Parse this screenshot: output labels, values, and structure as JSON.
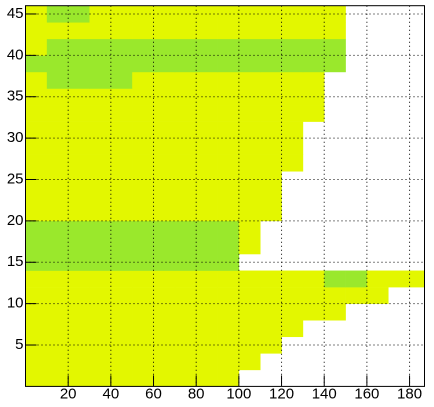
{
  "chart_data": {
    "type": "heatmap",
    "xbins": [
      0,
      10,
      20,
      30,
      40,
      50,
      60,
      70,
      80,
      90,
      100,
      110,
      120,
      130,
      140,
      150,
      160,
      170,
      180,
      187
    ],
    "ybins": [
      0,
      2,
      4,
      6,
      8,
      10,
      12,
      14,
      16,
      18,
      20,
      22,
      24,
      26,
      28,
      30,
      32,
      34,
      36,
      38,
      40,
      42,
      44,
      46
    ],
    "z": [
      [
        1,
        1,
        1,
        1,
        1,
        1,
        1,
        1,
        1,
        1,
        null,
        null,
        null,
        null,
        null,
        null,
        null,
        null,
        null
      ],
      [
        1,
        1,
        1,
        1,
        1,
        1,
        1,
        1,
        1,
        1,
        1,
        null,
        null,
        null,
        null,
        null,
        null,
        null,
        null
      ],
      [
        1,
        1,
        1,
        1,
        1,
        1,
        1,
        1,
        1,
        1,
        1,
        1,
        null,
        null,
        null,
        null,
        null,
        null,
        null
      ],
      [
        1,
        1,
        1,
        1,
        1,
        1,
        1,
        1,
        1,
        1,
        1,
        1,
        1,
        null,
        null,
        null,
        null,
        null,
        null
      ],
      [
        1,
        1,
        1,
        1,
        1,
        1,
        1,
        1,
        1,
        1,
        1,
        1,
        1,
        1,
        1,
        null,
        null,
        null,
        null
      ],
      [
        1,
        1,
        1,
        1,
        1,
        1,
        1,
        1,
        1,
        1,
        1,
        1,
        1,
        1,
        1,
        1,
        1,
        null,
        null
      ],
      [
        1,
        1,
        1,
        1,
        1,
        1,
        1,
        1,
        1,
        1,
        1,
        1,
        1,
        1,
        2,
        2,
        1,
        1,
        1
      ],
      [
        2,
        2,
        2,
        2,
        2,
        2,
        2,
        2,
        2,
        2,
        null,
        null,
        null,
        null,
        null,
        null,
        null,
        null,
        null
      ],
      [
        2,
        2,
        2,
        2,
        2,
        2,
        2,
        2,
        2,
        2,
        1,
        null,
        null,
        null,
        null,
        null,
        null,
        null,
        null
      ],
      [
        2,
        2,
        2,
        2,
        2,
        2,
        2,
        2,
        2,
        2,
        1,
        null,
        null,
        null,
        null,
        null,
        null,
        null,
        null
      ],
      [
        1,
        1,
        1,
        1,
        1,
        1,
        1,
        1,
        1,
        1,
        1,
        1,
        null,
        null,
        null,
        null,
        null,
        null,
        null
      ],
      [
        1,
        1,
        1,
        1,
        1,
        1,
        1,
        1,
        1,
        1,
        1,
        1,
        null,
        null,
        null,
        null,
        null,
        null,
        null
      ],
      [
        1,
        1,
        1,
        1,
        1,
        1,
        1,
        1,
        1,
        1,
        1,
        1,
        null,
        null,
        null,
        null,
        null,
        null,
        null
      ],
      [
        1,
        1,
        1,
        1,
        1,
        1,
        1,
        1,
        1,
        1,
        1,
        1,
        1,
        null,
        null,
        null,
        null,
        null,
        null
      ],
      [
        1,
        1,
        1,
        1,
        1,
        1,
        1,
        1,
        1,
        1,
        1,
        1,
        1,
        null,
        null,
        null,
        null,
        null,
        null
      ],
      [
        1,
        1,
        1,
        1,
        1,
        1,
        1,
        1,
        1,
        1,
        1,
        1,
        1,
        null,
        null,
        null,
        null,
        null,
        null
      ],
      [
        1,
        1,
        1,
        1,
        1,
        1,
        1,
        1,
        1,
        1,
        1,
        1,
        1,
        1,
        null,
        null,
        null,
        null,
        null
      ],
      [
        1,
        1,
        1,
        1,
        1,
        1,
        1,
        1,
        1,
        1,
        1,
        1,
        1,
        1,
        null,
        null,
        null,
        null,
        null
      ],
      [
        1,
        2,
        2,
        2,
        2,
        1,
        1,
        1,
        1,
        1,
        1,
        1,
        1,
        1,
        null,
        null,
        null,
        null,
        null
      ],
      [
        2,
        2,
        2,
        2,
        2,
        2,
        2,
        2,
        2,
        2,
        2,
        2,
        2,
        2,
        2,
        null,
        null,
        null,
        null
      ],
      [
        1,
        2,
        2,
        2,
        2,
        2,
        2,
        2,
        2,
        2,
        2,
        2,
        2,
        2,
        2,
        null,
        null,
        null,
        null
      ],
      [
        1,
        1,
        1,
        1,
        1,
        1,
        1,
        1,
        1,
        1,
        1,
        1,
        1,
        1,
        1,
        null,
        null,
        null,
        null
      ],
      [
        1,
        2,
        2,
        1,
        1,
        1,
        1,
        1,
        1,
        1,
        1,
        1,
        1,
        1,
        1,
        null,
        null,
        null,
        null
      ]
    ],
    "zlevels": [
      1,
      2
    ],
    "zcolors": [
      "#e3f700",
      "#9ae82c"
    ],
    "xlim": [
      0,
      187
    ],
    "ylim": [
      0,
      46
    ],
    "xticks": [
      20,
      40,
      60,
      80,
      100,
      120,
      140,
      160,
      180
    ],
    "yticks": [
      5,
      10,
      15,
      20,
      25,
      30,
      35,
      40,
      45
    ],
    "grid": true
  }
}
